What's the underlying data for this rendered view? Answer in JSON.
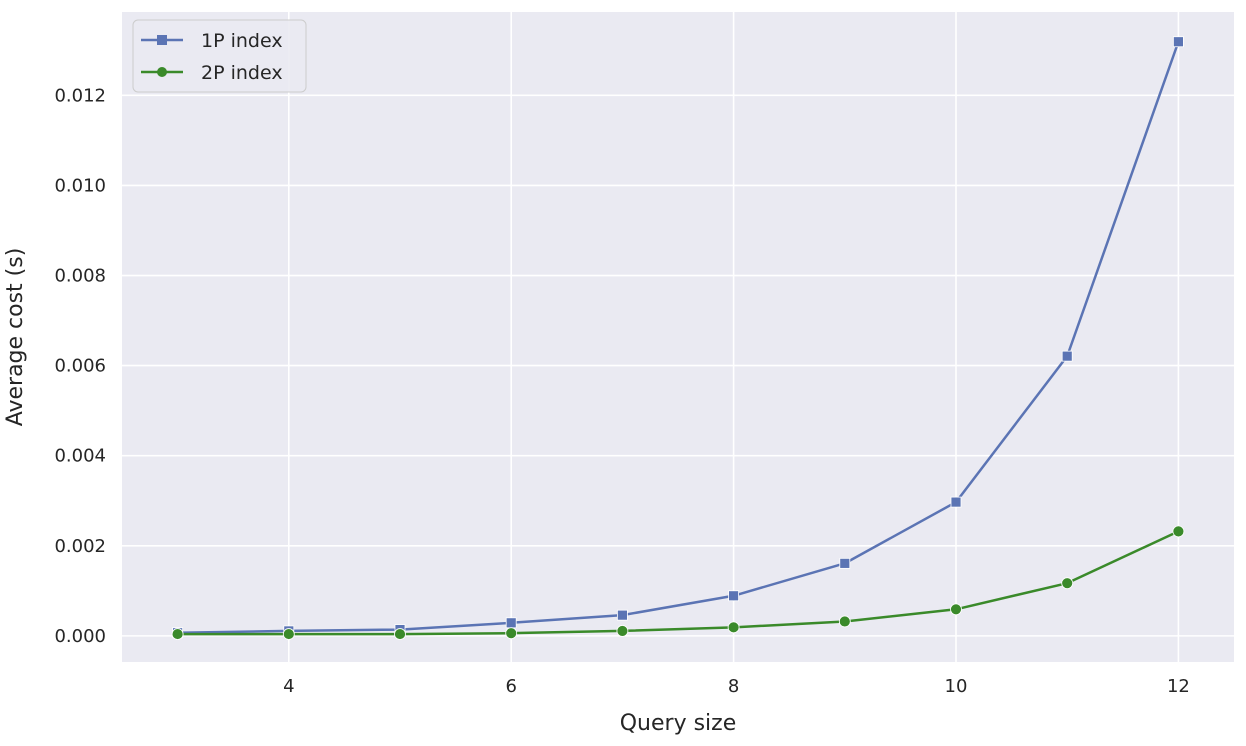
{
  "chart_data": {
    "type": "line",
    "title": "",
    "xlabel": "Query size",
    "ylabel": "Average cost (s)",
    "x": [
      3,
      4,
      5,
      6,
      7,
      8,
      9,
      10,
      11,
      12
    ],
    "xlim": [
      2.5,
      12.5
    ],
    "ylim": [
      -0.00058,
      0.01385
    ],
    "xticks": [
      4,
      6,
      8,
      10,
      12
    ],
    "xtick_labels": [
      "4",
      "6",
      "8",
      "10",
      "12"
    ],
    "yticks": [
      0.0,
      0.002,
      0.004,
      0.006,
      0.008,
      0.01,
      0.012
    ],
    "ytick_labels": [
      "0.000",
      "0.002",
      "0.004",
      "0.006",
      "0.008",
      "0.010",
      "0.012"
    ],
    "grid": true,
    "legend_position": "top-left",
    "series": [
      {
        "name": "1P index",
        "color": "#5b74b4",
        "marker": "square",
        "values": [
          7e-05,
          0.00011,
          0.00014,
          0.00029,
          0.00046,
          0.00089,
          0.00161,
          0.00297,
          0.00621,
          0.01319
        ]
      },
      {
        "name": "2P index",
        "color": "#3a8a2a",
        "marker": "circle",
        "values": [
          4e-05,
          4e-05,
          4e-05,
          6e-05,
          0.00011,
          0.00019,
          0.00032,
          0.00059,
          0.00117,
          0.00232
        ]
      }
    ]
  }
}
